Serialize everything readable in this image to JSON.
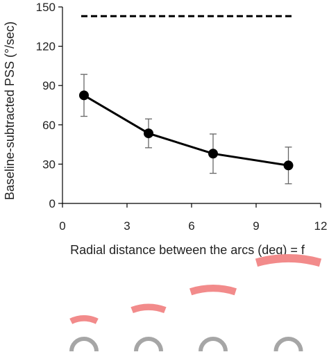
{
  "chart_data": {
    "type": "line",
    "title": "",
    "xlabel": "Radial distance between the arcs (deg) = f",
    "ylabel": "Baseline-subtracted PSS (°/sec)",
    "xlim": [
      0,
      12
    ],
    "ylim": [
      0,
      150
    ],
    "x_ticks": [
      0,
      3,
      6,
      9,
      12
    ],
    "y_ticks": [
      0,
      30,
      60,
      90,
      120,
      150
    ],
    "grid": false,
    "legend": "none",
    "series": [
      {
        "x": [
          1,
          4,
          7,
          10.5
        ],
        "y": [
          82.5,
          53.5,
          38,
          29
        ],
        "error": [
          16,
          11,
          15,
          14
        ],
        "color": "#000000"
      }
    ],
    "reference_line": {
      "y": 143,
      "x_range": [
        1,
        10.5
      ],
      "style": "dashed",
      "color": "#000000"
    },
    "stimulus_icons": {
      "arc_colors": {
        "target": "#f28b8b",
        "base": "#a6a6a6"
      },
      "pairs": [
        {
          "x": 1,
          "offset": 0.2
        },
        {
          "x": 4,
          "offset": 0.35
        },
        {
          "x": 7,
          "offset": 0.6
        },
        {
          "x": 10.5,
          "offset": 1.0
        }
      ]
    }
  }
}
